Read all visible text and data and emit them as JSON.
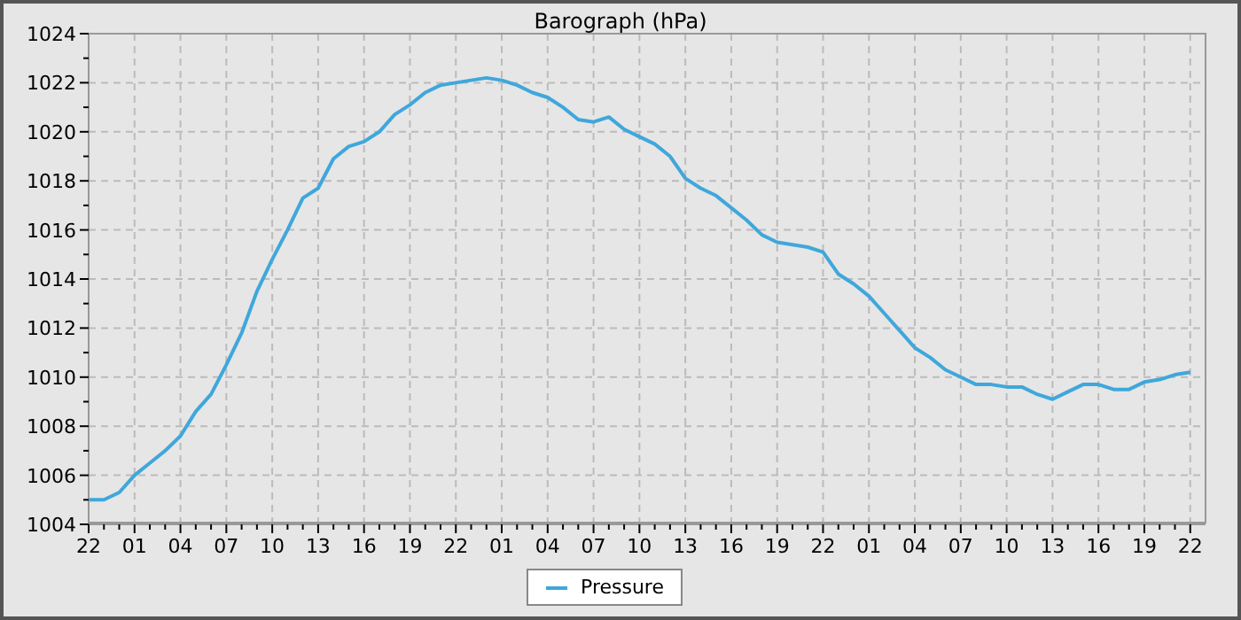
{
  "chart_data": {
    "type": "line",
    "title": "Barograph (hPa)",
    "categories": [
      "22",
      null,
      null,
      "01",
      null,
      null,
      "04",
      null,
      null,
      "07",
      null,
      null,
      "10",
      null,
      null,
      "13",
      null,
      null,
      "16",
      null,
      null,
      "19",
      null,
      null,
      "22",
      null,
      null,
      "01",
      null,
      null,
      "04",
      null,
      null,
      "07",
      null,
      null,
      "10",
      null,
      null,
      "13",
      null,
      null,
      "16",
      null,
      null,
      "19",
      null,
      null,
      "22",
      null,
      null,
      "01",
      null,
      null,
      "04",
      null,
      null,
      "07",
      null,
      null,
      "10",
      null,
      null,
      "13",
      null,
      null,
      "16",
      null,
      null,
      "19",
      null,
      null,
      "22"
    ],
    "series": [
      {
        "name": "Pressure",
        "color": "#3fa7db",
        "values": [
          1005.0,
          1005.0,
          1005.3,
          1006.0,
          1006.5,
          1007.0,
          1007.6,
          1008.6,
          1009.3,
          1010.5,
          1011.8,
          1013.5,
          1014.8,
          1016.0,
          1017.3,
          1017.7,
          1018.9,
          1019.4,
          1019.6,
          1020.0,
          1020.7,
          1021.1,
          1021.6,
          1021.9,
          1022.0,
          1022.1,
          1022.2,
          1022.1,
          1021.9,
          1021.6,
          1021.4,
          1021.0,
          1020.5,
          1020.4,
          1020.6,
          1020.1,
          1019.8,
          1019.5,
          1019.0,
          1018.1,
          1017.7,
          1017.4,
          1016.9,
          1016.4,
          1015.8,
          1015.5,
          1015.4,
          1015.3,
          1015.1,
          1014.2,
          1013.8,
          1013.3,
          1012.6,
          1011.9,
          1011.2,
          1010.8,
          1010.3,
          1010.0,
          1009.7,
          1009.7,
          1009.6,
          1009.6,
          1009.3,
          1009.1,
          1009.4,
          1009.7,
          1009.7,
          1009.5,
          1009.5,
          1009.8,
          1009.9,
          1010.1,
          1010.2
        ]
      }
    ],
    "ylim": [
      1004,
      1024
    ],
    "yticks": [
      1004,
      {
        "value": 1005,
        "label": null
      },
      1006,
      {
        "value": 1007,
        "label": null
      },
      1008,
      {
        "value": 1009,
        "label": null
      },
      1010,
      {
        "value": 1011,
        "label": null
      },
      1012,
      {
        "value": 1013,
        "label": null
      },
      1014,
      {
        "value": 1015,
        "label": null
      },
      1016,
      {
        "value": 1017,
        "label": null
      },
      1018,
      {
        "value": 1019,
        "label": null
      },
      1020,
      {
        "value": 1021,
        "label": null
      },
      1022,
      {
        "value": 1023,
        "label": null
      },
      1024
    ],
    "grid": true,
    "legend": "bottom",
    "marker": "none",
    "line_style": "solid"
  }
}
